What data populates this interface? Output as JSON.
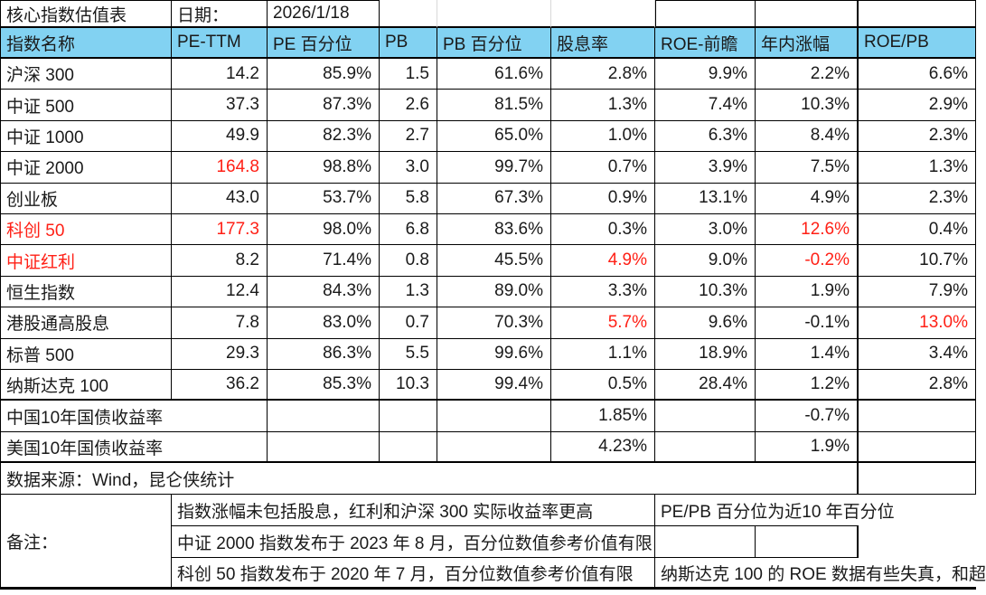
{
  "meta": {
    "title": "核心指数估值表",
    "date_label": "日期：",
    "date_value": "2026/1/18"
  },
  "table": {
    "columns": [
      "指数名称",
      "PE-TTM",
      "PE 百分位",
      "PB",
      "PB 百分位",
      "股息率",
      "ROE-前瞻",
      "年内涨幅",
      "ROE/PB"
    ],
    "rows": [
      {
        "name": "沪深 300",
        "values": [
          "14.2",
          "85.9%",
          "1.5",
          "61.6%",
          "2.8%",
          "9.9%",
          "2.2%",
          "6.6%"
        ],
        "red_cols": []
      },
      {
        "name": "中证 500",
        "values": [
          "37.3",
          "87.3%",
          "2.6",
          "81.5%",
          "1.3%",
          "7.4%",
          "10.3%",
          "2.9%"
        ],
        "red_cols": []
      },
      {
        "name": "中证 1000",
        "values": [
          "49.9",
          "82.3%",
          "2.7",
          "65.0%",
          "1.0%",
          "6.3%",
          "8.4%",
          "2.3%"
        ],
        "red_cols": []
      },
      {
        "name": "中证 2000",
        "values": [
          "164.8",
          "98.8%",
          "3.0",
          "99.7%",
          "0.7%",
          "3.9%",
          "7.5%",
          "1.3%"
        ],
        "red_cols": [
          1
        ]
      },
      {
        "name": "创业板",
        "values": [
          "43.0",
          "53.7%",
          "5.8",
          "67.3%",
          "0.9%",
          "13.1%",
          "4.9%",
          "2.3%"
        ],
        "red_cols": []
      },
      {
        "name": "科创 50",
        "values": [
          "177.3",
          "98.0%",
          "6.8",
          "83.6%",
          "0.3%",
          "3.0%",
          "12.6%",
          "0.4%"
        ],
        "red_cols": [
          0,
          1,
          7
        ]
      },
      {
        "name": "中证红利",
        "values": [
          "8.2",
          "71.4%",
          "0.8",
          "45.5%",
          "4.9%",
          "9.0%",
          "-0.2%",
          "10.7%"
        ],
        "red_cols": [
          0,
          5,
          7
        ]
      },
      {
        "name": "恒生指数",
        "values": [
          "12.4",
          "84.3%",
          "1.3",
          "89.0%",
          "3.3%",
          "10.3%",
          "1.9%",
          "7.9%"
        ],
        "red_cols": []
      },
      {
        "name": "港股通高股息",
        "values": [
          "7.8",
          "83.0%",
          "0.7",
          "70.3%",
          "5.7%",
          "9.6%",
          "-0.1%",
          "13.0%"
        ],
        "red_cols": [
          5,
          8
        ]
      },
      {
        "name": "标普 500",
        "values": [
          "29.3",
          "86.3%",
          "5.5",
          "99.6%",
          "1.1%",
          "18.9%",
          "1.4%",
          "3.4%"
        ],
        "red_cols": []
      },
      {
        "name": "纳斯达克 100",
        "values": [
          "36.2",
          "85.3%",
          "10.3",
          "99.4%",
          "0.5%",
          "28.4%",
          "1.2%",
          "2.8%"
        ],
        "red_cols": []
      }
    ],
    "bond_rows": [
      {
        "name": "中国10年国债收益率",
        "dividend_yield": "1.85%",
        "ytd_change": "-0.7%"
      },
      {
        "name": "美国10年国债收益率",
        "dividend_yield": "4.23%",
        "ytd_change": "1.9%"
      }
    ]
  },
  "source_row": {
    "text": "数据来源：Wind，昆仑侠统计"
  },
  "notes": {
    "label": "备注：",
    "rows": [
      {
        "main": "指数涨幅未包括股息，红利和沪深 300 实际收益率更高",
        "side": "PE/PB 百分位为近10 年百分位"
      },
      {
        "main": "中证 2000 指数发布于 2023 年 8 月，百分位数值参考价值有限",
        "side": ""
      },
      {
        "main": "科创 50 指数发布于 2020 年 7 月，百分位数值参考价值有限",
        "side": "纳斯达克 100 的 ROE 数据有些失真，和超"
      }
    ]
  },
  "colors": {
    "header_bg": "#82d2f2",
    "highlight_red": "#ff2016",
    "text": "#1a1a1a",
    "border": "#000000"
  }
}
